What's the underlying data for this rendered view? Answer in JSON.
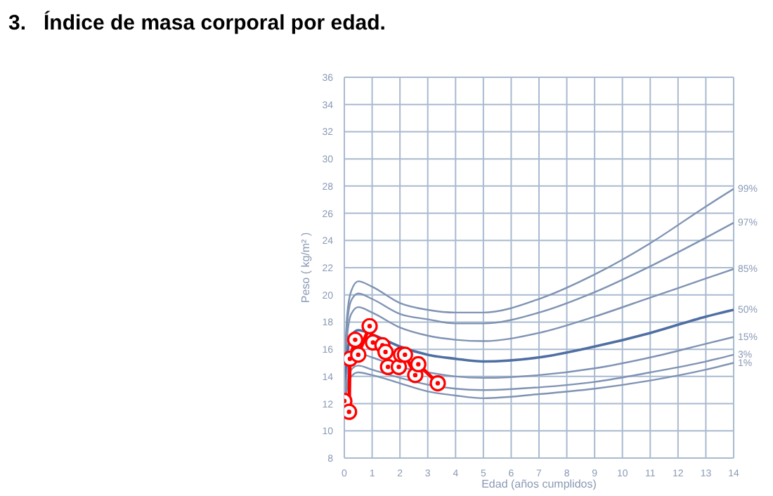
{
  "chart_data": {
    "type": "line",
    "title": "3.   Índice de masa corporal por edad.",
    "xlabel": "Edad (años cumplidos)",
    "ylabel": "Peso ( kg/m² )",
    "xlim": [
      0,
      14
    ],
    "xticks": [
      0,
      1,
      2,
      3,
      4,
      5,
      6,
      7,
      8,
      9,
      10,
      11,
      12,
      13,
      14
    ],
    "ylim": [
      8,
      36
    ],
    "yticks": [
      8,
      10,
      12,
      14,
      16,
      18,
      20,
      22,
      24,
      26,
      28,
      30,
      32,
      34,
      36
    ],
    "grid": true,
    "series": [
      {
        "name": "99%",
        "color": "#7f93b3",
        "marker": "none",
        "x": [
          0,
          0.1,
          0.25,
          0.5,
          1,
          2,
          3,
          4,
          5,
          7,
          9,
          11,
          13,
          14
        ],
        "values": [
          14.5,
          18.5,
          20.3,
          21.0,
          20.6,
          19.4,
          18.9,
          18.7,
          18.7,
          19.7,
          21.5,
          23.8,
          26.5,
          27.8
        ]
      },
      {
        "name": "97%",
        "color": "#7f93b3",
        "marker": "none",
        "x": [
          0,
          0.1,
          0.25,
          0.5,
          1,
          2,
          3,
          4,
          5,
          7,
          9,
          11,
          13,
          14
        ],
        "values": [
          14.2,
          17.8,
          19.6,
          20.1,
          19.7,
          18.6,
          18.2,
          17.9,
          17.9,
          18.7,
          20.2,
          22.1,
          24.2,
          25.3
        ]
      },
      {
        "name": "85%",
        "color": "#7f93b3",
        "marker": "none",
        "x": [
          0,
          0.1,
          0.25,
          0.5,
          1,
          2,
          3,
          4,
          5,
          7,
          9,
          11,
          13,
          14
        ],
        "values": [
          13.8,
          16.9,
          18.6,
          19.1,
          18.7,
          17.6,
          17.0,
          16.7,
          16.6,
          17.2,
          18.4,
          19.8,
          21.2,
          21.9
        ]
      },
      {
        "name": "50%",
        "color": "#4f6fa3",
        "marker": "none",
        "x": [
          0,
          0.1,
          0.25,
          0.5,
          1,
          2,
          3,
          4,
          5,
          7,
          9,
          11,
          13,
          14
        ],
        "values": [
          13.2,
          15.6,
          17.0,
          17.4,
          17.1,
          16.2,
          15.6,
          15.3,
          15.1,
          15.4,
          16.2,
          17.2,
          18.4,
          18.9
        ]
      },
      {
        "name": "15%",
        "color": "#7f93b3",
        "marker": "none",
        "x": [
          0,
          0.1,
          0.25,
          0.5,
          1,
          2,
          3,
          4,
          5,
          7,
          9,
          11,
          13,
          14
        ],
        "values": [
          12.5,
          14.3,
          15.4,
          15.7,
          15.4,
          14.7,
          14.3,
          14.0,
          13.9,
          14.1,
          14.6,
          15.4,
          16.4,
          16.9
        ]
      },
      {
        "name": "3%",
        "color": "#7f93b3",
        "marker": "none",
        "x": [
          0,
          0.1,
          0.25,
          0.5,
          1,
          2,
          3,
          4,
          5,
          7,
          9,
          11,
          13,
          14
        ],
        "values": [
          12.0,
          13.5,
          14.5,
          14.8,
          14.5,
          13.9,
          13.4,
          13.1,
          13.0,
          13.2,
          13.6,
          14.3,
          15.1,
          15.6
        ]
      },
      {
        "name": "1%",
        "color": "#7f93b3",
        "marker": "none",
        "x": [
          0,
          0.1,
          0.25,
          0.5,
          1,
          2,
          3,
          4,
          5,
          7,
          9,
          11,
          13,
          14
        ],
        "values": [
          11.6,
          13.1,
          14.0,
          14.3,
          14.1,
          13.5,
          12.9,
          12.6,
          12.4,
          12.7,
          13.1,
          13.7,
          14.5,
          15.0
        ]
      },
      {
        "color": "#ff0000",
        "marker": "circle",
        "x": [
          0,
          0.17,
          0.2,
          0.39,
          0.5,
          0.91,
          1.03,
          1.37,
          1.48,
          1.57,
          1.96,
          2.04,
          2.18,
          2.55,
          2.66,
          3.36
        ],
        "values": [
          12.2,
          11.4,
          15.3,
          16.7,
          15.6,
          17.7,
          16.5,
          16.3,
          15.8,
          14.7,
          14.7,
          15.6,
          15.6,
          14.1,
          14.9,
          13.5
        ]
      }
    ]
  }
}
